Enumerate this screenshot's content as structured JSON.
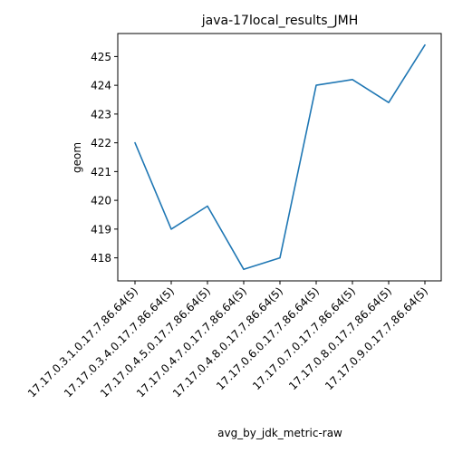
{
  "chart_data": {
    "type": "line",
    "title": "java-17local_results_JMH",
    "xlabel": "avg_by_jdk_metric-raw",
    "ylabel": "geom",
    "categories": [
      "17.17.0.3.1.0.17.7.86.64(5)",
      "17.17.0.3.4.0.17.7.86.64(5)",
      "17.17.0.4.5.0.17.7.86.64(5)",
      "17.17.0.4.7.0.17.7.86.64(5)",
      "17.17.0.4.8.0.17.7.86.64(5)",
      "17.17.0.6.0.17.7.86.64(5)",
      "17.17.0.7.0.17.7.86.64(5)",
      "17.17.0.8.0.17.7.86.64(5)",
      "17.17.0.9.0.17.7.86.64(5)"
    ],
    "values": [
      422.0,
      419.0,
      419.8,
      417.6,
      418.0,
      424.0,
      424.2,
      423.4,
      425.4
    ],
    "ylim": [
      417.2,
      425.8
    ],
    "yticks": [
      418,
      419,
      420,
      421,
      422,
      423,
      424,
      425
    ],
    "grid": false,
    "line_color": "#1f77b4"
  }
}
